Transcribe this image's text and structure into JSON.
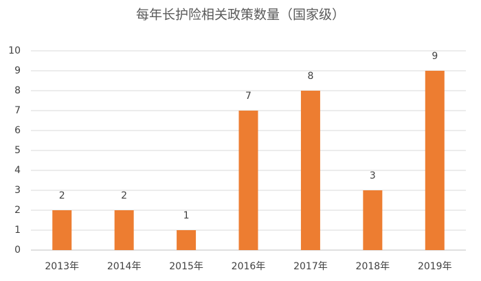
{
  "chart_data": {
    "type": "bar",
    "title": "每年长护险相关政策数量（国家级）",
    "categories": [
      "2013年",
      "2014年",
      "2015年",
      "2016年",
      "2017年",
      "2018年",
      "2019年"
    ],
    "values": [
      2,
      2,
      1,
      7,
      8,
      3,
      9
    ],
    "color": "#ed7d31",
    "ylim": [
      0,
      10
    ],
    "yticks": [
      0,
      1,
      2,
      3,
      4,
      5,
      6,
      7,
      8,
      9,
      10
    ],
    "grid": true,
    "data_labels": true
  }
}
